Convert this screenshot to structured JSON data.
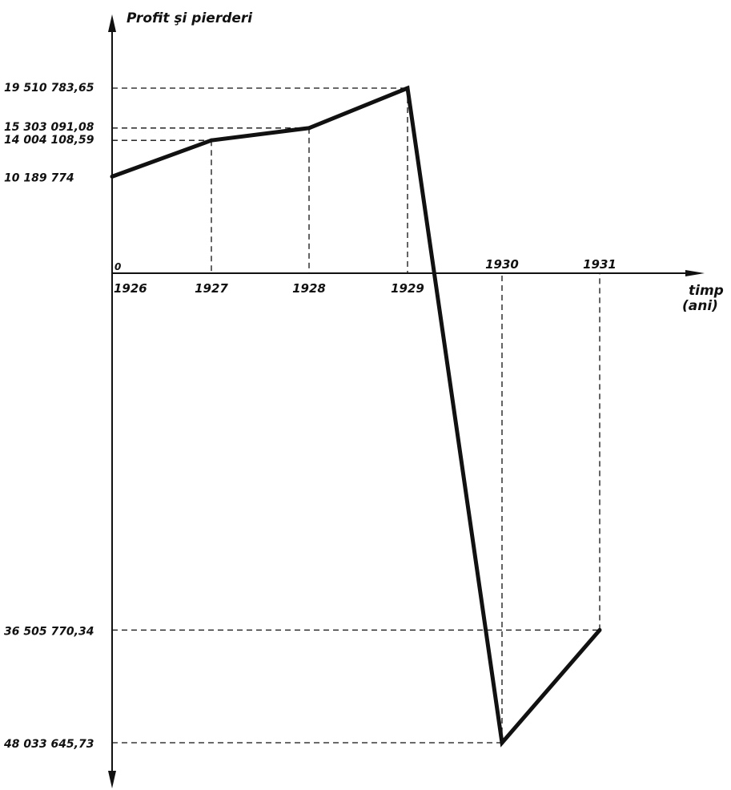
{
  "chart_data": {
    "type": "line",
    "title": "",
    "ylabel": "Profit şi pierderi",
    "xlabel": "timp (ani)",
    "xlabel_lines": [
      "timp",
      "(ani)"
    ],
    "origin_label": "0",
    "grid": false,
    "categories": [
      "1926",
      "1927",
      "1928",
      "1929",
      "1930",
      "1931"
    ],
    "values": [
      10189774,
      14004108.59,
      15303091.08,
      19510783.65,
      -48033645.73,
      -36505770.34
    ],
    "value_labels": [
      "10 189 774",
      "14 004 108,59",
      "15 303 091,08",
      "19 510 783,65",
      "48 033 645,73",
      "36 505 770,34"
    ],
    "ylim": [
      -52000000,
      26000000
    ]
  }
}
